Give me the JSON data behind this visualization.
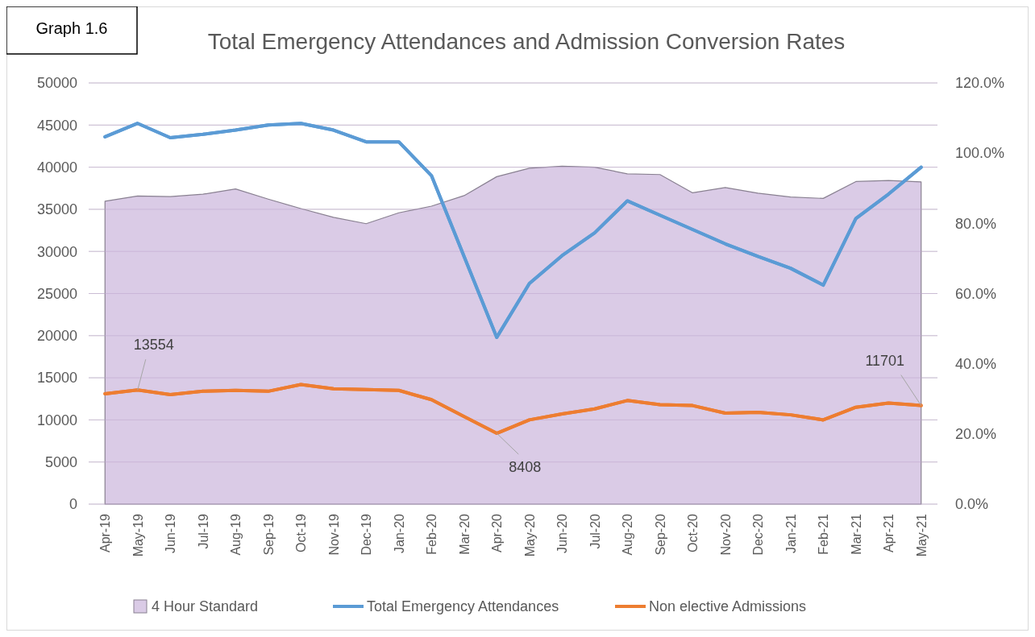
{
  "chart_data": {
    "type": "line",
    "title": "Total Emergency Attendances and Admission Conversion Rates",
    "annotations": [
      "Graph 1.6"
    ],
    "categories": [
      "Apr-19",
      "May-19",
      "Jun-19",
      "Jul-19",
      "Aug-19",
      "Sep-19",
      "Oct-19",
      "Nov-19",
      "Dec-19",
      "Jan-20",
      "Feb-20",
      "Mar-20",
      "Apr-20",
      "May-20",
      "Jun-20",
      "Jul-20",
      "Aug-20",
      "Sep-20",
      "Oct-20",
      "Nov-20",
      "Dec-20",
      "Jan-21",
      "Feb-21",
      "Mar-21",
      "Apr-21",
      "May-21"
    ],
    "series": [
      {
        "name": "4 Hour Standard",
        "type": "area",
        "axis": "y2",
        "color": "#dacbe6",
        "values": [
          86.3,
          87.8,
          87.6,
          88.3,
          89.8,
          86.9,
          84.2,
          81.7,
          79.9,
          83.0,
          84.9,
          87.9,
          93.3,
          95.7,
          96.3,
          96.0,
          94.1,
          93.9,
          88.7,
          90.2,
          88.6,
          87.5,
          87.1,
          91.9,
          92.2,
          91.8
        ]
      },
      {
        "name": "Total Emergency Attendances",
        "color": "#5b9bd5",
        "values": [
          43600,
          45200,
          43500,
          43900,
          44400,
          45000,
          45200,
          44400,
          43000,
          43000,
          39000,
          29400,
          19800,
          26200,
          29500,
          32200,
          36000,
          34300,
          32600,
          30900,
          29400,
          28000,
          26000,
          33900,
          36800,
          40000
        ]
      },
      {
        "name": "Non elective Admissions",
        "color": "#ed7d31",
        "values": [
          13100,
          13554,
          13000,
          13400,
          13500,
          13400,
          14200,
          13700,
          13600,
          13500,
          12400,
          10400,
          8408,
          10000,
          10700,
          11300,
          12300,
          11800,
          11700,
          10800,
          10900,
          10600,
          10000,
          11500,
          12000,
          11701
        ],
        "value_labels": [
          null,
          "13554",
          null,
          null,
          null,
          null,
          null,
          null,
          null,
          null,
          null,
          null,
          "8408",
          null,
          null,
          null,
          null,
          null,
          null,
          null,
          null,
          null,
          null,
          null,
          null,
          "11701"
        ]
      }
    ],
    "ylim": [
      0,
      50000
    ],
    "yticks": [
      0,
      5000,
      10000,
      15000,
      20000,
      25000,
      30000,
      35000,
      40000,
      45000,
      50000
    ],
    "y2lim": [
      0,
      120
    ],
    "y2ticks": [
      {
        "value": 0,
        "label": "0.0%"
      },
      {
        "value": 20,
        "label": "20.0%"
      },
      {
        "value": 40,
        "label": "40.0%"
      },
      {
        "value": 60,
        "label": "60.0%"
      },
      {
        "value": 80,
        "label": "80.0%"
      },
      {
        "value": 100,
        "label": "100.0%"
      },
      {
        "value": 120,
        "label": "120.0%"
      }
    ],
    "grid": "y",
    "legend": "bottom"
  }
}
